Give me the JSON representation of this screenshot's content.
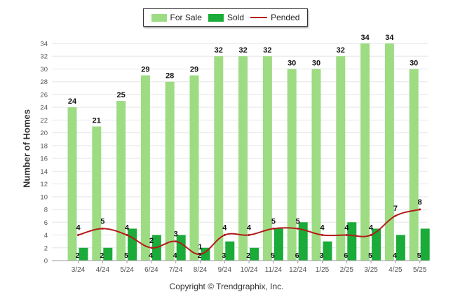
{
  "legend": {
    "for_sale": "For Sale",
    "sold": "Sold",
    "pended": "Pended"
  },
  "colors": {
    "for_sale": "#9ddc82",
    "sold": "#1aab39",
    "pended": "#b31b1b",
    "grid": "#e6e6e6",
    "axis_text": "#555555"
  },
  "footer": "Copyright © Trendgraphix, Inc.",
  "chart_data": {
    "type": "bar",
    "ylabel": "Number of Homes",
    "xlabel": "",
    "ylim": [
      0,
      34
    ],
    "yticks": [
      0,
      2,
      4,
      6,
      8,
      10,
      12,
      14,
      16,
      18,
      20,
      22,
      24,
      26,
      28,
      30,
      32,
      34
    ],
    "grid": true,
    "legend_position": "top-center",
    "categories": [
      "3/24",
      "4/24",
      "5/24",
      "6/24",
      "7/24",
      "8/24",
      "9/24",
      "10/24",
      "11/24",
      "12/24",
      "1/25",
      "2/25",
      "3/25",
      "4/25",
      "5/25"
    ],
    "series": [
      {
        "name": "For Sale",
        "type": "bar",
        "values": [
          24,
          21,
          25,
          29,
          28,
          29,
          32,
          32,
          32,
          30,
          30,
          32,
          34,
          34,
          30
        ]
      },
      {
        "name": "Sold",
        "type": "bar",
        "values": [
          2,
          2,
          5,
          4,
          4,
          2,
          3,
          2,
          5,
          6,
          3,
          6,
          5,
          4,
          5
        ]
      },
      {
        "name": "Pended",
        "type": "line",
        "values": [
          4,
          5,
          4,
          2,
          3,
          1,
          4,
          4,
          5,
          5,
          4,
          4,
          4,
          7,
          8
        ]
      }
    ]
  }
}
